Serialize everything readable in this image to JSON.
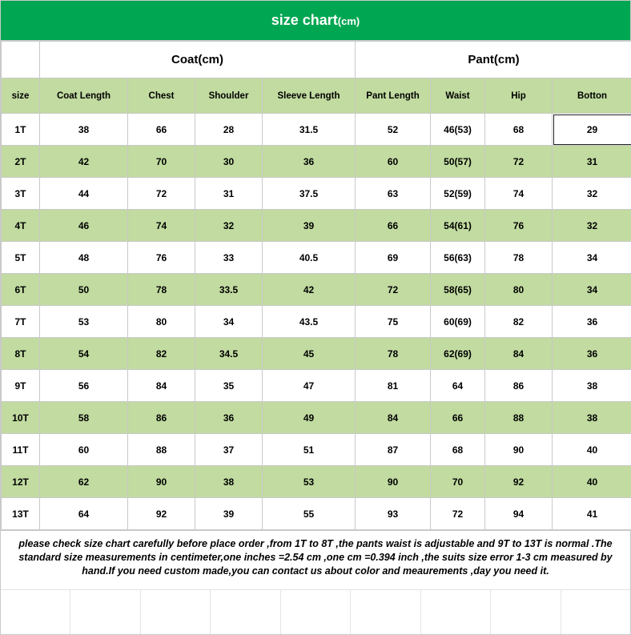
{
  "title": "size chart",
  "title_unit": "(cm)",
  "section_headers": {
    "coat": "Coat(cm)",
    "pant": "Pant(cm)"
  },
  "columns": [
    "size",
    "Coat   Length",
    "Chest",
    "Shoulder",
    "Sleeve   Length",
    "Pant Length",
    "Waist",
    "Hip",
    "Botton"
  ],
  "colors": {
    "header_bg": "#00a651",
    "header_text": "#ffffff",
    "band_green": "#c1dba0",
    "band_white": "#ffffff",
    "grid": "#c9c9c9",
    "highlight_border": "#222222"
  },
  "highlight_cell": {
    "row": 0,
    "col": 8
  },
  "rows": [
    {
      "cells": [
        "1T",
        "38",
        "66",
        "28",
        "31.5",
        "52",
        "46(53)",
        "68",
        "29"
      ]
    },
    {
      "cells": [
        "2T",
        "42",
        "70",
        "30",
        "36",
        "60",
        "50(57)",
        "72",
        "31"
      ]
    },
    {
      "cells": [
        "3T",
        "44",
        "72",
        "31",
        "37.5",
        "63",
        "52(59)",
        "74",
        "32"
      ]
    },
    {
      "cells": [
        "4T",
        "46",
        "74",
        "32",
        "39",
        "66",
        "54(61)",
        "76",
        "32"
      ]
    },
    {
      "cells": [
        "5T",
        "48",
        "76",
        "33",
        "40.5",
        "69",
        "56(63)",
        "78",
        "34"
      ]
    },
    {
      "cells": [
        "6T",
        "50",
        "78",
        "33.5",
        "42",
        "72",
        "58(65)",
        "80",
        "34"
      ]
    },
    {
      "cells": [
        "7T",
        "53",
        "80",
        "34",
        "43.5",
        "75",
        "60(69)",
        "82",
        "36"
      ]
    },
    {
      "cells": [
        "8T",
        "54",
        "82",
        "34.5",
        "45",
        "78",
        "62(69)",
        "84",
        "36"
      ]
    },
    {
      "cells": [
        "9T",
        "56",
        "84",
        "35",
        "47",
        "81",
        "64",
        "86",
        "38"
      ]
    },
    {
      "cells": [
        "10T",
        "58",
        "86",
        "36",
        "49",
        "84",
        "66",
        "88",
        "38"
      ]
    },
    {
      "cells": [
        "11T",
        "60",
        "88",
        "37",
        "51",
        "87",
        "68",
        "90",
        "40"
      ]
    },
    {
      "cells": [
        "12T",
        "62",
        "90",
        "38",
        "53",
        "90",
        "70",
        "92",
        "40"
      ]
    },
    {
      "cells": [
        "13T",
        "64",
        "92",
        "39",
        "55",
        "93",
        "72",
        "94",
        "41"
      ]
    }
  ],
  "footer_note": "please  check size chart carefully before place order ,from 1T to 8T ,the pants waist is adjustable and 9T to 13T is normal .The standard size measurements in centimeter,one inches =2.54 cm ,one cm =0.394 inch ,the suits size  error 1-3 cm measured by hand.If you need custom made,you can contact us about color and meaurements ,day you need it.",
  "col_classes": [
    "col-size",
    "col-coatlen",
    "col-chest",
    "col-shoulder",
    "col-sleeve",
    "col-pantlen",
    "col-waist",
    "col-hip",
    "col-botton"
  ]
}
